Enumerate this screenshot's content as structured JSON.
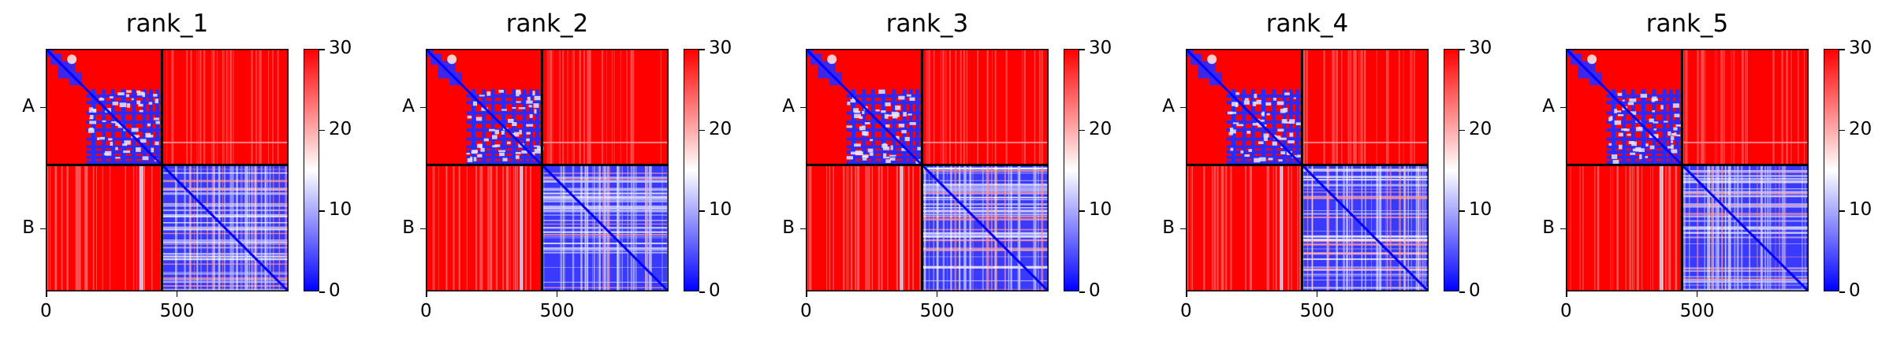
{
  "chart_data": [
    {
      "type": "heatmap",
      "title": "rank_1",
      "y_tick_labels": [
        "A",
        "B"
      ],
      "x_ticks": [
        0,
        500
      ],
      "x_range": [
        0,
        930
      ],
      "segment_boundary": 445,
      "colorbar": {
        "range": [
          0,
          30
        ],
        "ticks": [
          0,
          10,
          20,
          30
        ],
        "colormap": "bwr"
      },
      "blocks": {
        "A-A": "mostly high (red), blue diagonal and blue patches",
        "A-B": "high (red)",
        "B-A": "high (red)",
        "B-B": "mostly low (blue), blue diagonal"
      }
    },
    {
      "type": "heatmap",
      "title": "rank_2",
      "y_tick_labels": [
        "A",
        "B"
      ],
      "x_ticks": [
        0,
        500
      ],
      "x_range": [
        0,
        930
      ],
      "segment_boundary": 445,
      "colorbar": {
        "range": [
          0,
          30
        ],
        "ticks": [
          0,
          10,
          20,
          30
        ],
        "colormap": "bwr"
      }
    },
    {
      "type": "heatmap",
      "title": "rank_3",
      "y_tick_labels": [
        "A",
        "B"
      ],
      "x_ticks": [
        0,
        500
      ],
      "x_range": [
        0,
        930
      ],
      "segment_boundary": 445,
      "colorbar": {
        "range": [
          0,
          30
        ],
        "ticks": [
          0,
          10,
          20,
          30
        ],
        "colormap": "bwr"
      }
    },
    {
      "type": "heatmap",
      "title": "rank_4",
      "y_tick_labels": [
        "A",
        "B"
      ],
      "x_ticks": [
        0,
        500
      ],
      "x_range": [
        0,
        930
      ],
      "segment_boundary": 445,
      "colorbar": {
        "range": [
          0,
          30
        ],
        "ticks": [
          0,
          10,
          20,
          30
        ],
        "colormap": "bwr"
      }
    },
    {
      "type": "heatmap",
      "title": "rank_5",
      "y_tick_labels": [
        "A",
        "B"
      ],
      "x_ticks": [
        0,
        500
      ],
      "x_range": [
        0,
        930
      ],
      "segment_boundary": 445,
      "colorbar": {
        "range": [
          0,
          30
        ],
        "ticks": [
          0,
          10,
          20,
          30
        ],
        "colormap": "bwr"
      }
    }
  ],
  "colors": {
    "high": "#ff0000",
    "mid": "#ffffff",
    "low": "#0000ff",
    "frame": "#000000"
  }
}
